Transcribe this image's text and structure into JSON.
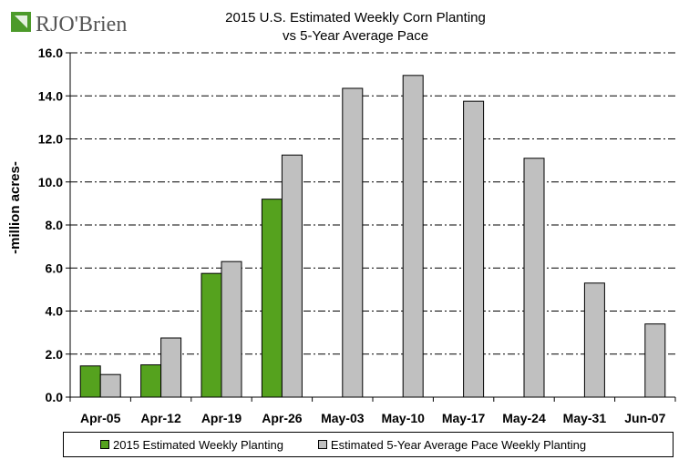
{
  "logo": {
    "brand_text": "RJO'Brien",
    "colors": {
      "mark": "#4c9a2a",
      "text": "#555555"
    }
  },
  "chart_data": {
    "type": "bar",
    "title": "2015 U.S. Estimated Weekly Corn Planting",
    "subtitle": "vs 5-Year Average Pace",
    "ylabel": "-million acres-",
    "xlabel": "",
    "ylim": [
      0,
      16
    ],
    "yticks": [
      "0.0",
      "2.0",
      "4.0",
      "6.0",
      "8.0",
      "10.0",
      "12.0",
      "14.0",
      "16.0"
    ],
    "grid": "dash-dot horizontal",
    "legend_position": "bottom",
    "categories": [
      "Apr-05",
      "Apr-12",
      "Apr-19",
      "Apr-26",
      "May-03",
      "May-10",
      "May-17",
      "May-24",
      "May-31",
      "Jun-07"
    ],
    "series": [
      {
        "name": "2015 Estimated Weekly Planting",
        "color": "#55a21e",
        "values": [
          1.45,
          1.5,
          5.75,
          9.2,
          null,
          null,
          null,
          null,
          null,
          null
        ]
      },
      {
        "name": "Estimated 5-Year Average Pace Weekly Planting",
        "color": "#c0c0c0",
        "values": [
          1.05,
          2.75,
          6.3,
          11.25,
          14.35,
          14.95,
          13.75,
          11.1,
          5.3,
          3.4
        ]
      }
    ]
  }
}
